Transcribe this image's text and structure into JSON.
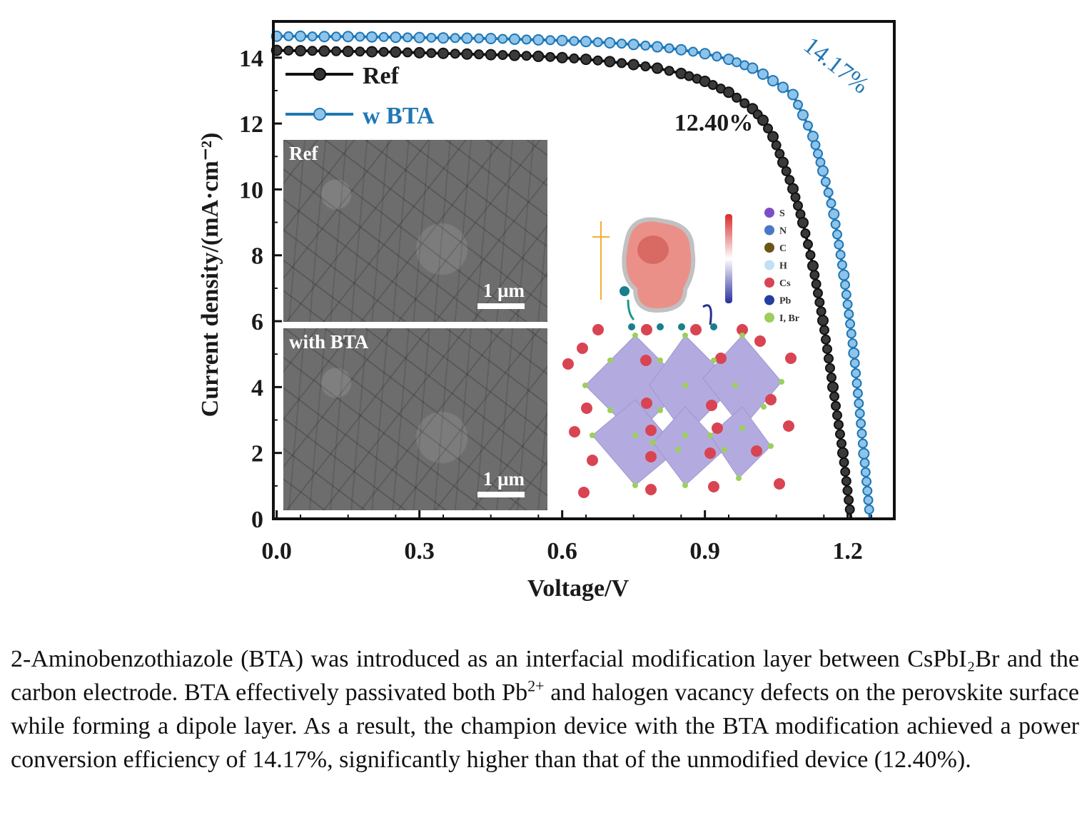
{
  "chart_data": {
    "type": "line",
    "title": "",
    "xlabel": "Voltage/V",
    "ylabel": "Current density/(mA·cm⁻²)",
    "xlim": [
      -0.007,
      1.298
    ],
    "ylim": [
      0,
      15.1
    ],
    "xticks": [
      0.0,
      0.3,
      0.6,
      0.9,
      1.2
    ],
    "xtick_labels": [
      "0.0",
      "0.3",
      "0.6",
      "0.9",
      "1.2"
    ],
    "yticks": [
      0,
      2,
      4,
      6,
      8,
      10,
      12,
      14
    ],
    "ytick_labels": [
      "0",
      "2",
      "4",
      "6",
      "8",
      "10",
      "12",
      "14"
    ],
    "grid": false,
    "legend_position": "top-left",
    "series": [
      {
        "name": "Ref",
        "color": "#111111",
        "x": [
          0,
          0.05,
          0.1,
          0.15,
          0.2,
          0.25,
          0.3,
          0.35,
          0.4,
          0.45,
          0.5,
          0.55,
          0.6,
          0.65,
          0.7,
          0.75,
          0.8,
          0.85,
          0.9,
          0.95,
          1.0,
          1.022,
          1.043,
          1.064,
          1.085,
          1.106,
          1.127,
          1.148,
          1.169,
          1.19,
          1.207
        ],
        "y": [
          14.22,
          14.21,
          14.2,
          14.19,
          14.18,
          14.17,
          14.15,
          14.13,
          14.11,
          14.09,
          14.07,
          14.04,
          14.0,
          13.95,
          13.88,
          13.79,
          13.68,
          13.52,
          13.28,
          12.95,
          12.45,
          12.1,
          11.6,
          10.82,
          10.02,
          8.99,
          7.68,
          6.02,
          4.0,
          2.0,
          0
        ]
      },
      {
        "name": "w BTA",
        "color": "#1f77b4",
        "x": [
          0,
          0.05,
          0.1,
          0.15,
          0.2,
          0.25,
          0.3,
          0.35,
          0.4,
          0.45,
          0.5,
          0.55,
          0.6,
          0.65,
          0.7,
          0.75,
          0.8,
          0.85,
          0.9,
          0.95,
          1.0,
          1.022,
          1.043,
          1.064,
          1.085,
          1.106,
          1.127,
          1.148,
          1.171,
          1.192,
          1.213,
          1.234,
          1.247
        ],
        "y": [
          14.65,
          14.65,
          14.64,
          14.64,
          14.63,
          14.62,
          14.61,
          14.6,
          14.59,
          14.58,
          14.56,
          14.54,
          14.52,
          14.49,
          14.45,
          14.4,
          14.33,
          14.24,
          14.12,
          13.95,
          13.68,
          13.5,
          13.3,
          13.1,
          12.88,
          12.26,
          11.61,
          10.56,
          9.25,
          7.4,
          5.03,
          1.98,
          0
        ]
      }
    ],
    "annotations": [
      "12.40%",
      "14.17%"
    ]
  },
  "insets": {
    "sem_top_label": "Ref",
    "sem_bottom_label": "with BTA",
    "scale_bar": "1 µm",
    "atom_legend": [
      "S",
      "N",
      "C",
      "H",
      "Cs",
      "Pb",
      "I,  Br"
    ],
    "atom_colors": [
      "#7b4fc4",
      "#4a78c8",
      "#6b5416",
      "#bfe0f5",
      "#d94452",
      "#243e9e",
      "#9ccf5a"
    ]
  },
  "caption": {
    "text_before_sup": "2-Aminobenzothiazole (BTA) was introduced as an interfacial modification layer between CsPbI₂Br and the carbon electrode. BTA effectively passivated both Pb",
    "sup": "2+",
    "text_after_sup": " and halogen vacancy defects on the perovskite surface while forming a dipole layer. As a result, the champion device with the BTA modification achieved a power conversion efficiency of 14.17%, significantly higher than that of the unmodified device (12.40%)."
  }
}
